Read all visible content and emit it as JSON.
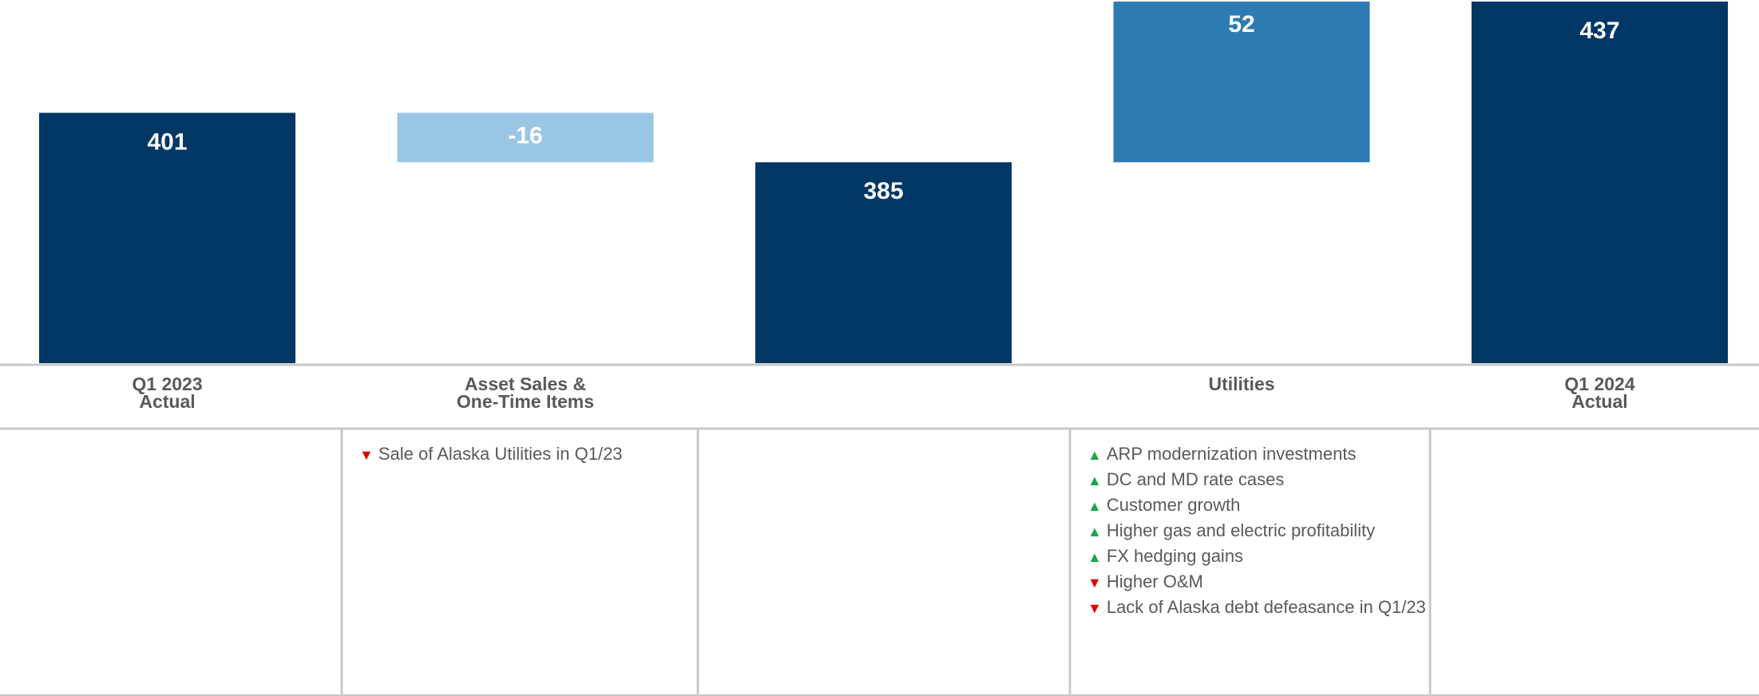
{
  "chart_data": {
    "type": "waterfall",
    "categories": [
      "Q1 2023\nActual",
      "Asset Sales &\nOne-Time Items",
      null,
      "Utilities",
      "Q1 2024\nActual"
    ],
    "measure": [
      "total",
      "relative",
      "total",
      "relative",
      "total"
    ],
    "values": [
      401,
      -16,
      385,
      52,
      437
    ],
    "colors": [
      "#003764",
      "#9ac6e6",
      "#003764",
      "#2e7bb4",
      "#003764"
    ],
    "ylim": [
      320,
      437.5
    ],
    "notes": [
      [],
      [
        {
          "text": "Sale of Alaska Utilities in Q1/23",
          "direction": "down"
        }
      ],
      [],
      [
        {
          "text": "ARP modernization investments",
          "direction": "up"
        },
        {
          "text": "DC and MD rate cases",
          "direction": "up"
        },
        {
          "text": "Customer growth",
          "direction": "up"
        },
        {
          "text": "Higher gas and electric profitability",
          "direction": "up"
        },
        {
          "text": "FX hedging gains",
          "direction": "up"
        },
        {
          "text": "Higher O&M",
          "direction": "down"
        },
        {
          "text": "Lack of Alaska debt defeasance in Q1/23",
          "direction": "down"
        }
      ],
      []
    ]
  }
}
